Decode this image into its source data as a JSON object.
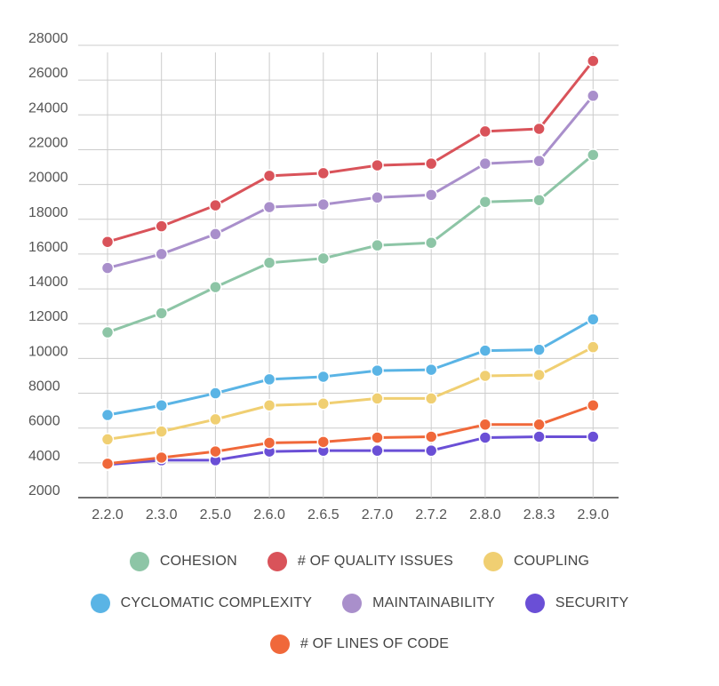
{
  "chart_data": {
    "type": "line",
    "categories": [
      "2.2.0",
      "2.3.0",
      "2.5.0",
      "2.6.0",
      "2.6.5",
      "2.7.0",
      "2.7.2",
      "2.8.0",
      "2.8.3",
      "2.9.0"
    ],
    "ylim": [
      2000,
      28000
    ],
    "yticks": [
      2000,
      4000,
      6000,
      8000,
      10000,
      12000,
      14000,
      16000,
      18000,
      20000,
      22000,
      24000,
      26000,
      28000
    ],
    "grid": true,
    "legend_position": "bottom",
    "series": [
      {
        "name": "COHESION",
        "color": "#8dc5a6",
        "values": [
          11500,
          12600,
          14100,
          15500,
          15750,
          16500,
          16650,
          19000,
          19100,
          21700
        ]
      },
      {
        "name": "# OF QUALITY ISSUES",
        "color": "#d9535a",
        "values": [
          16700,
          17600,
          18800,
          20500,
          20650,
          21100,
          21200,
          23050,
          23200,
          27100
        ]
      },
      {
        "name": "COUPLING",
        "color": "#f0cf72",
        "values": [
          5350,
          5800,
          6500,
          7300,
          7400,
          7700,
          7700,
          9000,
          9050,
          10650
        ]
      },
      {
        "name": "CYCLOMATIC COMPLEXITY",
        "color": "#5ab4e5",
        "values": [
          6750,
          7300,
          8000,
          8800,
          8950,
          9300,
          9350,
          10450,
          10500,
          12250
        ]
      },
      {
        "name": "MAINTAINABILITY",
        "color": "#a98fcb",
        "values": [
          15200,
          16000,
          17150,
          18700,
          18850,
          19250,
          19400,
          21200,
          21350,
          25100
        ]
      },
      {
        "name": "SECURITY",
        "color": "#6a4fd6",
        "values": [
          3900,
          4150,
          4150,
          4650,
          4700,
          4700,
          4700,
          5450,
          5500,
          5500
        ]
      },
      {
        "name": "# OF LINES OF CODE",
        "color": "#f0683a",
        "values": [
          3950,
          4300,
          4650,
          5150,
          5200,
          5450,
          5500,
          6200,
          6200,
          7300
        ]
      }
    ]
  },
  "legend": {
    "rows": [
      [
        0,
        1,
        2
      ],
      [
        3,
        4,
        5
      ],
      [
        6
      ]
    ]
  }
}
